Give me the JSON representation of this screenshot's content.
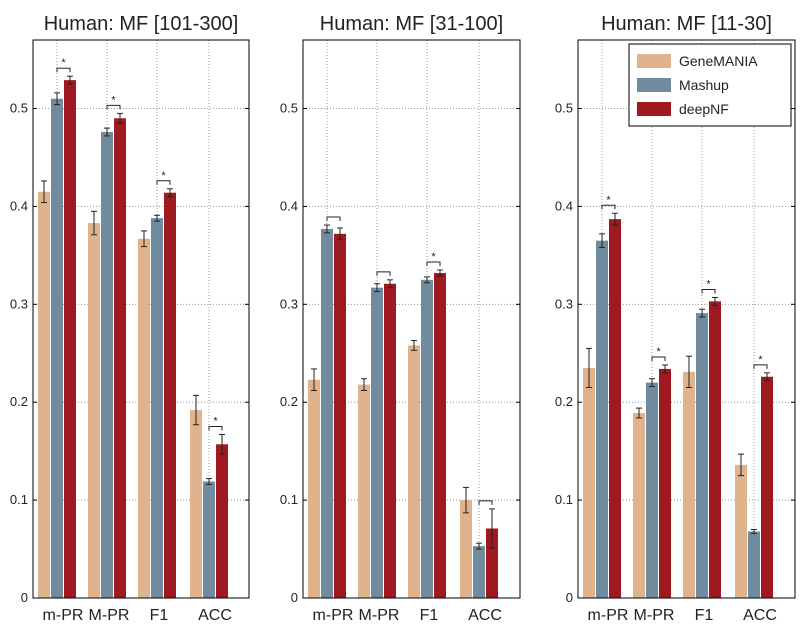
{
  "chart_data": [
    {
      "type": "bar",
      "title": "Human: MF [101-300]",
      "categories": [
        "m-PR",
        "M-PR",
        "F1",
        "ACC"
      ],
      "ylim": [
        0,
        0.57
      ],
      "yticks": [
        0.0,
        0.1,
        0.2,
        0.3,
        0.4,
        0.5
      ],
      "grid": true,
      "series": [
        {
          "name": "GeneMANIA",
          "values": [
            0.415,
            0.383,
            0.367,
            0.192
          ],
          "errors": [
            0.011,
            0.012,
            0.008,
            0.015
          ]
        },
        {
          "name": "Mashup",
          "values": [
            0.51,
            0.476,
            0.388,
            0.119
          ],
          "errors": [
            0.006,
            0.004,
            0.003,
            0.003
          ]
        },
        {
          "name": "deepNF",
          "values": [
            0.529,
            0.49,
            0.414,
            0.157
          ],
          "errors": [
            0.004,
            0.005,
            0.004,
            0.01
          ]
        }
      ],
      "significance": [
        "*",
        "*",
        "*",
        "*"
      ]
    },
    {
      "type": "bar",
      "title": "Human: MF [31-100]",
      "categories": [
        "m-PR",
        "M-PR",
        "F1",
        "ACC"
      ],
      "ylim": [
        0,
        0.57
      ],
      "yticks": [
        0.0,
        0.1,
        0.2,
        0.3,
        0.4,
        0.5
      ],
      "grid": true,
      "series": [
        {
          "name": "GeneMANIA",
          "values": [
            0.223,
            0.218,
            0.258,
            0.1
          ],
          "errors": [
            0.011,
            0.006,
            0.005,
            0.013
          ]
        },
        {
          "name": "Mashup",
          "values": [
            0.377,
            0.317,
            0.325,
            0.053
          ],
          "errors": [
            0.004,
            0.004,
            0.003,
            0.003
          ]
        },
        {
          "name": "deepNF",
          "values": [
            0.372,
            0.321,
            0.332,
            0.071
          ],
          "errors": [
            0.006,
            0.004,
            0.003,
            0.02
          ]
        }
      ],
      "significance": [
        "",
        "",
        "*",
        ""
      ]
    },
    {
      "type": "bar",
      "title": "Human: MF [11-30]",
      "categories": [
        "m-PR",
        "M-PR",
        "F1",
        "ACC"
      ],
      "ylim": [
        0,
        0.57
      ],
      "yticks": [
        0.0,
        0.1,
        0.2,
        0.3,
        0.4,
        0.5
      ],
      "grid": true,
      "legend": "top-right",
      "series": [
        {
          "name": "GeneMANIA",
          "values": [
            0.235,
            0.189,
            0.231,
            0.136
          ],
          "errors": [
            0.02,
            0.005,
            0.016,
            0.011
          ]
        },
        {
          "name": "Mashup",
          "values": [
            0.365,
            0.22,
            0.291,
            0.068
          ],
          "errors": [
            0.007,
            0.004,
            0.004,
            0.002
          ]
        },
        {
          "name": "deepNF",
          "values": [
            0.387,
            0.234,
            0.303,
            0.226
          ],
          "errors": [
            0.006,
            0.004,
            0.004,
            0.004
          ]
        }
      ],
      "significance": [
        "*",
        "*",
        "*",
        "*"
      ]
    }
  ],
  "legend": {
    "items": [
      {
        "label": "GeneMANIA",
        "color": "#e1b38d"
      },
      {
        "label": "Mashup",
        "color": "#718b9e"
      },
      {
        "label": "deepNF",
        "color": "#9e1a20"
      }
    ]
  }
}
